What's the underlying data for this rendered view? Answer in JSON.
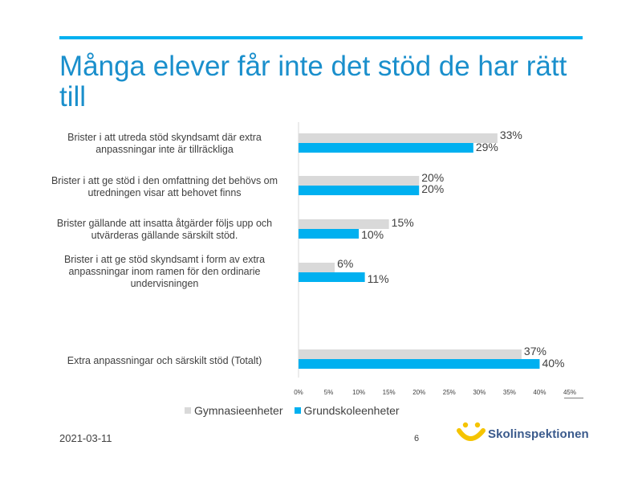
{
  "slide": {
    "title": "Många elever får inte det stöd de har rätt till",
    "date": "2021-03-11",
    "page_number": "6",
    "logo_text": "Skolinspektionen"
  },
  "colors": {
    "title": "#1a8fcc",
    "rule": "#00b0f0",
    "gymnasie": "#d9d9d9",
    "grundskole": "#00b0f0",
    "logo_yellow": "#f5c400",
    "logo_blue": "#3a5a8c"
  },
  "chart_data": {
    "type": "bar",
    "orientation": "horizontal",
    "categories": [
      "Brister i att utreda stöd skyndsamt där extra anpassningar inte är tillräckliga",
      "Brister i att ge stöd i den omfattning det behövs om utredningen visar att behovet finns",
      "Brister gällande att insatta åtgärder följs upp och utvärderas gällande särskilt stöd.",
      "Brister i att ge stöd skyndsamt  i form av extra anpassningar inom ramen för den ordinarie undervisningen",
      "Extra anpassningar och särskilt stöd (Totalt)"
    ],
    "series": [
      {
        "name": "Gymnasieenheter",
        "values": [
          33,
          20,
          15,
          6,
          37
        ],
        "labels": [
          "33%",
          "20%",
          "15%",
          "6%",
          "37%"
        ]
      },
      {
        "name": "Grundskoleenheter",
        "values": [
          29,
          20,
          10,
          11,
          40
        ],
        "labels": [
          "29%",
          "20%",
          "10%",
          "11%",
          "40%"
        ]
      }
    ],
    "xlim": [
      0,
      45
    ],
    "xticks": [
      0,
      5,
      10,
      15,
      20,
      25,
      30,
      35,
      40,
      45
    ],
    "xtick_labels": [
      "0%",
      "5%",
      "10%",
      "15%",
      "20%",
      "25%",
      "30%",
      "35%",
      "40%",
      "45%"
    ],
    "legend_position": "bottom",
    "title": "",
    "xlabel": "",
    "ylabel": ""
  }
}
